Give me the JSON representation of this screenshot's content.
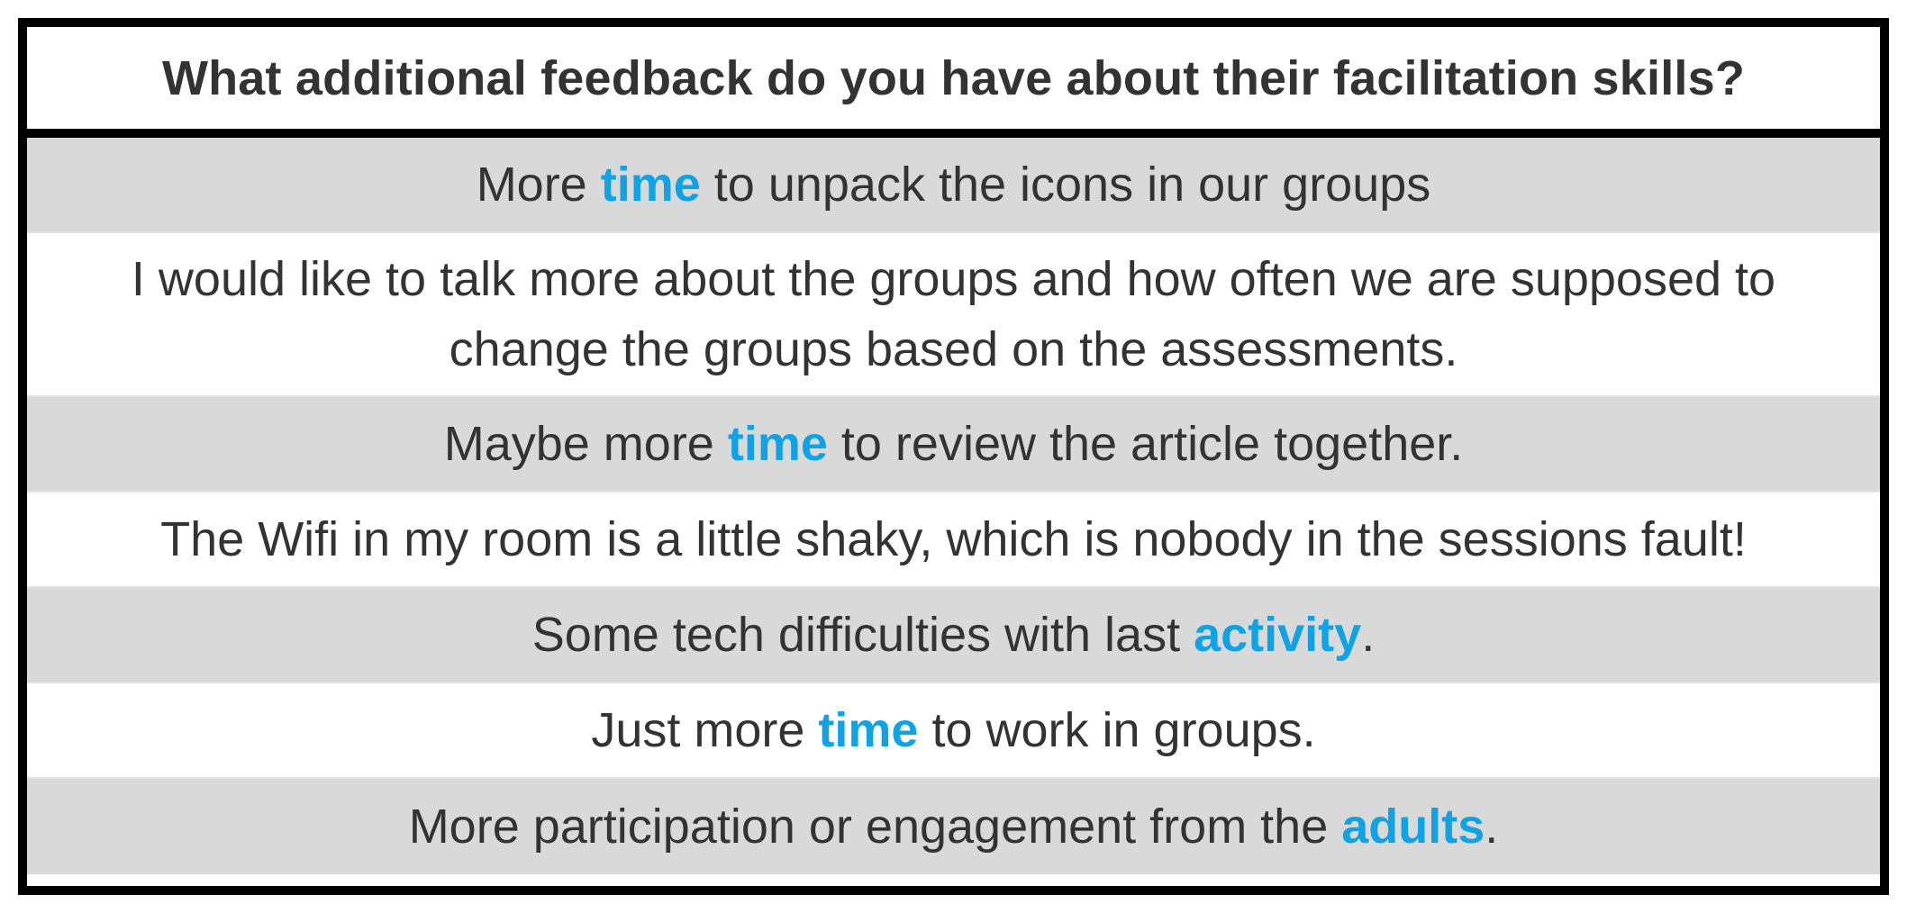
{
  "title": "What additional feedback do you have about their facilitation skills?",
  "colors": {
    "highlight": "#0fa3e6",
    "text": "#333333",
    "shaded_row": "#d9d9d9",
    "border": "#000000"
  },
  "responses": [
    {
      "before": "More ",
      "highlight": "time",
      "after": " to unpack the icons in our groups"
    },
    {
      "before": "I would like to talk more about the groups and how often we are supposed to change the groups based on the assessments.",
      "highlight": "",
      "after": ""
    },
    {
      "before": "Maybe more ",
      "highlight": "time",
      "after": " to review the article together."
    },
    {
      "before": "The Wifi in my room is a little shaky, which is nobody in the sessions fault!",
      "highlight": "",
      "after": ""
    },
    {
      "before": "Some tech difficulties with last ",
      "highlight": "activity",
      "after": "."
    },
    {
      "before": "Just more ",
      "highlight": "time",
      "after": " to work in groups."
    },
    {
      "before": "More participation or engagement from the ",
      "highlight": "adults",
      "after": "."
    }
  ]
}
